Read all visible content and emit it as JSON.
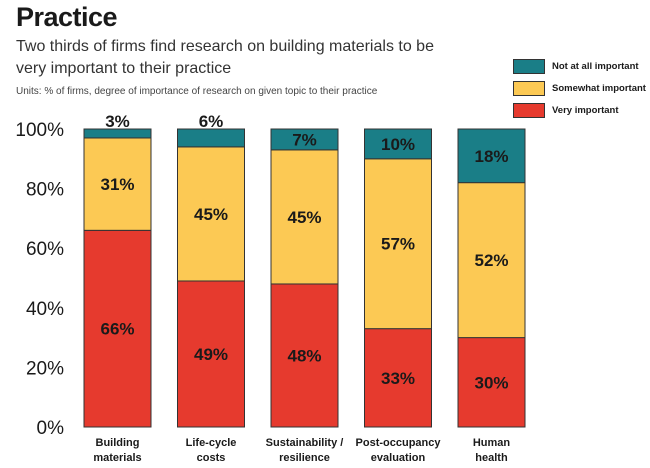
{
  "title": "Practice",
  "subtitle": "Two thirds of firms find research on building materials to be very important to their practice",
  "units": "Units: % of firms, degree of importance of research on given topic to their practice",
  "chart_data": {
    "type": "bar",
    "stacked": true,
    "categories": [
      [
        "Building",
        "materials"
      ],
      [
        "Life-cycle",
        "costs"
      ],
      [
        "Sustainability /",
        "resilience"
      ],
      [
        "Post-occupancy",
        "evaluation"
      ],
      [
        "Human",
        "health"
      ]
    ],
    "series": [
      {
        "name": "Very important",
        "color": "#e63a2e",
        "values": [
          66,
          49,
          48,
          33,
          30
        ]
      },
      {
        "name": "Somewhat important",
        "color": "#fcc954",
        "values": [
          31,
          45,
          45,
          57,
          52
        ]
      },
      {
        "name": "Not at all important",
        "color": "#1a7e87",
        "values": [
          3,
          6,
          7,
          10,
          18
        ]
      }
    ],
    "legend_order": [
      "Not at all important",
      "Somewhat important",
      "Very important"
    ],
    "legend_position": "top-right",
    "yticks": [
      "0%",
      "20%",
      "40%",
      "60%",
      "80%",
      "100%"
    ],
    "ylim": [
      0,
      100
    ]
  }
}
